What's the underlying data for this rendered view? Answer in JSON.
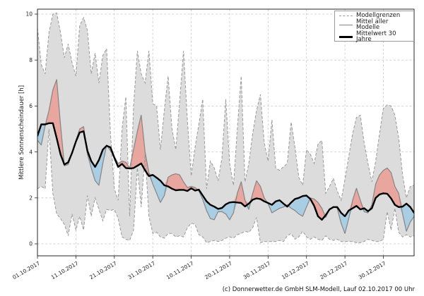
{
  "caption": "(c) Donnerwetter.de GmbH SLM-Modell, Lauf 02.10.2017 00 Uhr",
  "legend": {
    "items": [
      {
        "label": "Modellgrenzen",
        "style": "dashed"
      },
      {
        "label": "Mittel aller Modelle",
        "style": "solid"
      },
      {
        "label": "Mittelwert 30 Jahre",
        "style": "thick"
      }
    ]
  },
  "chart_data": {
    "type": "line",
    "title": "",
    "xlabel": "",
    "ylabel": "Mittlere Sonnenscheindauer [h]",
    "ylim": [
      0,
      10
    ],
    "grid": true,
    "legend_position": "upper right",
    "x_unit": "days since 01.10.2017, daily values",
    "xticks": {
      "days": [
        0,
        10,
        20,
        30,
        40,
        50,
        60,
        70,
        80,
        90
      ],
      "labels": [
        "01.10.2017",
        "11.10.2017",
        "21.10.2017",
        "31.10.2017",
        "10.11.2017",
        "20.11.2017",
        "30.11.2017",
        "10.12.2017",
        "20.12.2017",
        "30.12.2017"
      ]
    },
    "yticks": [
      0,
      2,
      4,
      6,
      8,
      10
    ],
    "colors": {
      "band": "#dcdcdc",
      "above": "#e9a69e",
      "below": "#a9cee3",
      "grid": "#c9c9c9"
    },
    "series": [
      {
        "name": "Modellgrenzen (obere Grenze)",
        "role": "upper",
        "style": "dashed",
        "color": "#999999",
        "values": [
          9.4,
          7.8,
          7.4,
          9.2,
          10.0,
          10.05,
          9.2,
          8.1,
          8.7,
          7.9,
          7.3,
          9.5,
          9.85,
          9.3,
          7.4,
          8.3,
          7.0,
          8.2,
          8.5,
          4.8,
          2.4,
          1.9,
          5.0,
          6.4,
          1.2,
          6.0,
          8.4,
          7.4,
          7.0,
          8.4,
          6.1,
          6.0,
          4.1,
          5.8,
          7.3,
          5.0,
          4.1,
          6.2,
          8.4,
          5.4,
          2.95,
          4.2,
          5.2,
          6.3,
          2.4,
          3.6,
          3.3,
          2.75,
          3.75,
          6.3,
          3.5,
          2.55,
          5.0,
          7.3,
          2.7,
          3.5,
          4.8,
          5.8,
          6.5,
          4.4,
          3.6,
          5.4,
          3.3,
          3.2,
          3.35,
          3.5,
          5.3,
          4.2,
          2.9,
          2.55,
          4.1,
          3.9,
          3.5,
          4.35,
          4.5,
          2.2,
          2.5,
          2.85,
          2.3,
          1.9,
          2.8,
          3.8,
          4.8,
          5.5,
          5.6,
          4.4,
          3.5,
          2.7,
          3.6,
          4.8,
          5.9,
          6.05,
          6.0,
          5.6,
          4.6,
          3.0,
          2.0,
          2.5,
          2.55
        ]
      },
      {
        "name": "Modellgrenzen (untere Grenze)",
        "role": "lower",
        "style": "dashed",
        "color": "#999999",
        "values": [
          2.4,
          2.5,
          2.4,
          5.0,
          2.2,
          1.3,
          1.1,
          0.85,
          0.35,
          1.3,
          0.6,
          1.2,
          0.6,
          2.1,
          1.2,
          2.0,
          1.5,
          1.0,
          1.5,
          1.45,
          1.5,
          1.1,
          0.3,
          0.2,
          0.15,
          0.6,
          3.3,
          1.6,
          3.9,
          1.2,
          0.45,
          0.5,
          0.3,
          0.25,
          0.45,
          0.45,
          0.3,
          0.35,
          0.3,
          0.7,
          0.9,
          0.85,
          0.4,
          0.3,
          0.05,
          0.1,
          0.15,
          0.1,
          0.15,
          0.25,
          0.3,
          0.25,
          0.4,
          0.45,
          0.55,
          0.5,
          0.7,
          1.15,
          0.05,
          0.1,
          0.1,
          0.1,
          0.1,
          0.15,
          0.1,
          0.35,
          0.45,
          0.2,
          0.3,
          0.55,
          0.3,
          0.2,
          0.3,
          0.2,
          0.15,
          0.35,
          0.2,
          0.15,
          0.2,
          0.1,
          0.1,
          0.1,
          0.1,
          0.05,
          0.05,
          0.1,
          0.2,
          0.15,
          0.1,
          0.1,
          0.2,
          1.4,
          0.6,
          1.55,
          0.5,
          0.3,
          0.4,
          0.3,
          0.35
        ]
      },
      {
        "name": "Mittel aller Modelle",
        "role": "mean",
        "style": "solid",
        "color": "#848484",
        "values": [
          4.5,
          4.3,
          5.15,
          5.8,
          6.7,
          7.15,
          5.2,
          3.4,
          3.45,
          3.95,
          4.5,
          5.0,
          5.1,
          3.9,
          3.3,
          2.75,
          2.55,
          3.5,
          4.3,
          4.05,
          3.8,
          3.5,
          3.6,
          3.55,
          3.3,
          4.1,
          4.9,
          5.6,
          4.0,
          3.1,
          2.6,
          2.2,
          1.8,
          2.1,
          2.9,
          3.0,
          3.05,
          3.0,
          2.7,
          2.45,
          2.5,
          2.45,
          2.3,
          1.93,
          1.45,
          1.1,
          1.05,
          1.4,
          1.4,
          1.3,
          1.05,
          1.35,
          2.2,
          2.7,
          1.9,
          1.5,
          2.2,
          2.75,
          2.5,
          2.0,
          1.75,
          1.35,
          1.45,
          1.55,
          1.6,
          1.7,
          1.55,
          1.45,
          1.3,
          1.2,
          1.6,
          2.0,
          1.95,
          1.8,
          1.55,
          1.15,
          1.5,
          1.62,
          1.55,
          0.9,
          0.45,
          1.1,
          1.9,
          2.42,
          1.9,
          1.4,
          1.35,
          1.7,
          2.6,
          3.0,
          3.2,
          3.3,
          3.1,
          2.5,
          2.2,
          1.3,
          0.55,
          0.95,
          1.2
        ]
      },
      {
        "name": "Mittelwert 30 Jahre",
        "role": "climate",
        "style": "thick",
        "color": "#000000",
        "values": [
          4.7,
          5.2,
          5.2,
          5.25,
          5.25,
          4.6,
          3.9,
          3.45,
          3.55,
          3.95,
          4.45,
          4.85,
          4.9,
          4.05,
          3.6,
          3.35,
          3.65,
          4.1,
          4.27,
          4.2,
          3.75,
          3.35,
          3.48,
          3.3,
          3.28,
          3.3,
          3.4,
          3.5,
          3.2,
          2.95,
          3.0,
          2.88,
          2.75,
          2.55,
          2.5,
          2.4,
          2.33,
          2.35,
          2.35,
          2.3,
          2.42,
          2.32,
          2.36,
          2.1,
          1.85,
          1.7,
          1.62,
          1.52,
          1.56,
          1.72,
          1.8,
          1.82,
          1.8,
          1.78,
          1.63,
          1.75,
          1.92,
          1.98,
          1.95,
          1.85,
          1.78,
          1.7,
          1.85,
          1.9,
          1.75,
          1.62,
          1.8,
          1.95,
          2.0,
          2.08,
          2.1,
          1.95,
          1.65,
          1.2,
          1.05,
          1.25,
          1.5,
          1.6,
          1.6,
          1.35,
          1.2,
          1.45,
          1.55,
          1.65,
          1.5,
          1.55,
          1.42,
          1.55,
          2.0,
          2.15,
          2.2,
          2.18,
          1.98,
          1.7,
          1.6,
          1.62,
          1.75,
          1.6,
          1.35
        ]
      }
    ]
  }
}
